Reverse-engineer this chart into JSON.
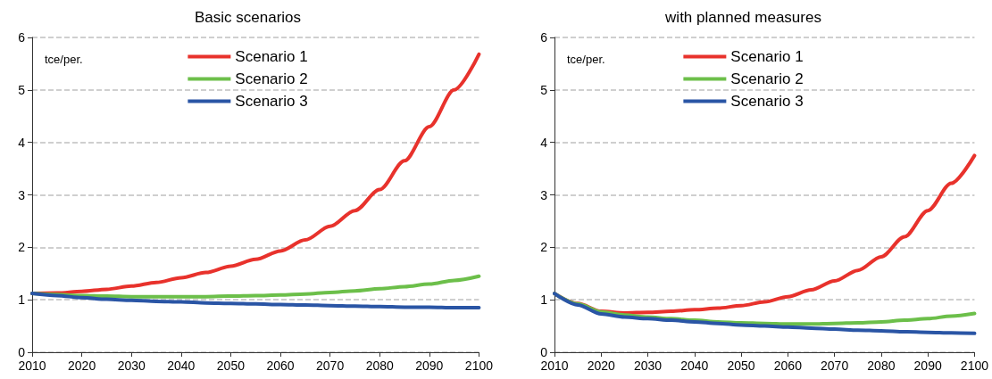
{
  "chart_data": [
    {
      "type": "line",
      "title": "Basic scenarios",
      "ylabel": "tce/per.",
      "x": [
        2010,
        2015,
        2020,
        2025,
        2030,
        2035,
        2040,
        2045,
        2050,
        2055,
        2060,
        2065,
        2070,
        2075,
        2080,
        2085,
        2090,
        2095,
        2100
      ],
      "series": [
        {
          "name": "Scenario 1",
          "color": "#e8322c",
          "values": [
            1.12,
            1.13,
            1.16,
            1.2,
            1.26,
            1.33,
            1.42,
            1.52,
            1.64,
            1.77,
            1.93,
            2.14,
            2.4,
            2.7,
            3.1,
            3.65,
            4.3,
            5.0,
            5.68
          ]
        },
        {
          "name": "Scenario 2",
          "color": "#6cbf4a",
          "values": [
            1.12,
            1.1,
            1.08,
            1.07,
            1.06,
            1.06,
            1.06,
            1.06,
            1.07,
            1.08,
            1.09,
            1.11,
            1.14,
            1.17,
            1.21,
            1.25,
            1.3,
            1.37,
            1.45
          ]
        },
        {
          "name": "Scenario 3",
          "color": "#2a55a5",
          "values": [
            1.12,
            1.08,
            1.04,
            1.01,
            0.99,
            0.97,
            0.96,
            0.94,
            0.93,
            0.92,
            0.91,
            0.9,
            0.89,
            0.88,
            0.87,
            0.86,
            0.86,
            0.85,
            0.85
          ]
        }
      ],
      "xlim": [
        2010,
        2100
      ],
      "xticks": [
        2010,
        2020,
        2030,
        2040,
        2050,
        2060,
        2070,
        2080,
        2090,
        2100
      ],
      "ylim": [
        0,
        6
      ],
      "yticks": [
        0,
        1,
        2,
        3,
        4,
        5,
        6
      ],
      "grid": "y",
      "legend": "top",
      "marker": "none",
      "line_style": "solid"
    },
    {
      "type": "line",
      "title": "with planned measures",
      "ylabel": "tce/per.",
      "x": [
        2010,
        2015,
        2020,
        2025,
        2030,
        2035,
        2040,
        2045,
        2050,
        2055,
        2060,
        2065,
        2070,
        2075,
        2080,
        2085,
        2090,
        2095,
        2100
      ],
      "series": [
        {
          "name": "Scenario 1",
          "color": "#e8322c",
          "values": [
            1.12,
            0.93,
            0.78,
            0.75,
            0.76,
            0.78,
            0.81,
            0.84,
            0.89,
            0.96,
            1.06,
            1.19,
            1.36,
            1.56,
            1.82,
            2.2,
            2.7,
            3.22,
            3.75
          ]
        },
        {
          "name": "Scenario 2",
          "color": "#6cbf4a",
          "values": [
            1.12,
            0.92,
            0.77,
            0.71,
            0.67,
            0.64,
            0.61,
            0.58,
            0.56,
            0.55,
            0.54,
            0.54,
            0.55,
            0.56,
            0.58,
            0.61,
            0.64,
            0.69,
            0.74
          ]
        },
        {
          "name": "Scenario 3",
          "color": "#2a55a5",
          "values": [
            1.12,
            0.9,
            0.73,
            0.67,
            0.64,
            0.61,
            0.58,
            0.55,
            0.52,
            0.5,
            0.48,
            0.46,
            0.44,
            0.42,
            0.41,
            0.39,
            0.38,
            0.37,
            0.36
          ]
        }
      ],
      "xlim": [
        2010,
        2100
      ],
      "xticks": [
        2010,
        2020,
        2030,
        2040,
        2050,
        2060,
        2070,
        2080,
        2090,
        2100
      ],
      "ylim": [
        0,
        6
      ],
      "yticks": [
        0,
        1,
        2,
        3,
        4,
        5,
        6
      ],
      "grid": "y",
      "legend": "top",
      "marker": "none",
      "line_style": "solid"
    }
  ]
}
